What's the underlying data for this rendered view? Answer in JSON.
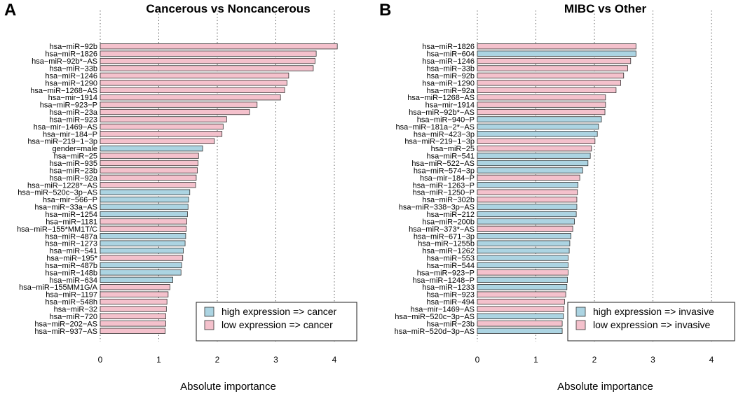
{
  "panels": [
    {
      "letter": "A",
      "title": "Cancerous vs Noncancerous",
      "xlabel": "Absolute importance",
      "xlim": [
        0,
        4.4
      ],
      "xticks": [
        0,
        1,
        2,
        3,
        4
      ],
      "legend": [
        {
          "key": "high",
          "label": "high expression => cancer"
        },
        {
          "key": "low",
          "label": "low expression => cancer"
        }
      ]
    },
    {
      "letter": "B",
      "title": "MIBC vs Other",
      "xlabel": "Absolute importance",
      "xlim": [
        0,
        4.4
      ],
      "xticks": [
        0,
        1,
        2,
        3,
        4
      ],
      "legend": [
        {
          "key": "high",
          "label": "high expression => invasive"
        },
        {
          "key": "low",
          "label": "low expression => invasive"
        }
      ]
    }
  ],
  "colors": {
    "high": "#acd4e2",
    "low": "#f4c1cc",
    "bar_edge": "#333333",
    "grid": "#666666"
  },
  "chart_data": [
    {
      "type": "bar",
      "orientation": "horizontal",
      "title": "Cancerous vs Noncancerous",
      "xlabel": "Absolute importance",
      "xlim": [
        0,
        4.4
      ],
      "grid": "vertical dotted",
      "legend_position": "bottom-right",
      "categories": [
        "hsa−miR−92b",
        "hsa−miR−1826",
        "hsa−miR−92b*−AS",
        "hsa−miR−33b",
        "hsa−miR−1246",
        "hsa−miR−1290",
        "hsa−miR−1268−AS",
        "hsa−mir−1914",
        "hsa−miR−923−P",
        "hsa−miR−23a",
        "hsa−miR−923",
        "hsa−mir−1469−AS",
        "hsa−mir−184−P",
        "hsa−miR−219−1−3p",
        "gender=male",
        "hsa−miR−25",
        "hsa−miR−935",
        "hsa−miR−23b",
        "hsa−miR−92a",
        "hsa−miR−1228*−AS",
        "hsa−miR−520c−3p−AS",
        "hsa−mir−566−P",
        "hsa−miR−33a−AS",
        "hsa−miR−1254",
        "hsa−miR−1181",
        "hsa−miR−155*MM1T/C",
        "hsa−miR−487a",
        "hsa−miR−1273",
        "hsa−miR−541",
        "hsa−miR−195*",
        "hsa−miR−487b",
        "hsa−miR−148b",
        "hsa−miR−634",
        "hsa−miR−155MM1G/A",
        "hsa−miR−1197",
        "hsa−miR−548h",
        "hsa−miR−32",
        "hsa−miR−720",
        "hsa−miR−202−AS",
        "hsa−miR−937−AS"
      ],
      "values": [
        4.05,
        3.69,
        3.67,
        3.64,
        3.22,
        3.19,
        3.15,
        3.08,
        2.68,
        2.55,
        2.16,
        2.1,
        2.08,
        1.95,
        1.75,
        1.68,
        1.67,
        1.66,
        1.64,
        1.63,
        1.53,
        1.51,
        1.5,
        1.49,
        1.48,
        1.47,
        1.46,
        1.45,
        1.42,
        1.41,
        1.39,
        1.38,
        1.24,
        1.19,
        1.16,
        1.14,
        1.13,
        1.12,
        1.12,
        1.11
      ],
      "direction": [
        "low",
        "low",
        "low",
        "low",
        "low",
        "low",
        "low",
        "low",
        "low",
        "low",
        "low",
        "low",
        "low",
        "low",
        "high",
        "low",
        "low",
        "low",
        "low",
        "low",
        "high",
        "high",
        "high",
        "high",
        "low",
        "low",
        "high",
        "high",
        "high",
        "low",
        "high",
        "high",
        "high",
        "low",
        "low",
        "low",
        "low",
        "low",
        "low",
        "low"
      ]
    },
    {
      "type": "bar",
      "orientation": "horizontal",
      "title": "MIBC vs Other",
      "xlabel": "Absolute importance",
      "xlim": [
        0,
        4.4
      ],
      "grid": "vertical dotted",
      "legend_position": "bottom-right",
      "categories": [
        "hsa−miR−1826",
        "hsa−miR−604",
        "hsa−miR−1246",
        "hsa−miR−33b",
        "hsa−miR−92b",
        "hsa−miR−1290",
        "hsa−miR−92a",
        "hsa−miR−1268−AS",
        "hsa−mir−1914",
        "hsa−miR−92b*−AS",
        "hsa−miR−940−P",
        "hsa−miR−181a−2*−AS",
        "hsa−miR−423−3p",
        "hsa−miR−219−1−3p",
        "hsa−miR−25",
        "hsa−miR−541",
        "hsa−miR−522−AS",
        "hsa−miR−574−3p",
        "hsa−mir−184−P",
        "hsa−miR−1263−P",
        "hsa−miR−1250−P",
        "hsa−miR−302b",
        "hsa−miR−338−3p−AS",
        "hsa−miR−212",
        "hsa−miR−200b",
        "hsa−miR−373*−AS",
        "hsa−miR−671−3p",
        "hsa−miR−1255b",
        "hsa−miR−1262",
        "hsa−miR−553",
        "hsa−miR−544",
        "hsa−miR−923−P",
        "hsa−miR−1248−P",
        "hsa−miR−1233",
        "hsa−miR−923",
        "hsa−miR−494",
        "hsa−mir−1469−AS",
        "hsa−miR−520c−3p−AS",
        "hsa−miR−23b",
        "hsa−miR−520d−3p−AS"
      ],
      "values": [
        2.71,
        2.71,
        2.62,
        2.57,
        2.5,
        2.45,
        2.37,
        2.19,
        2.19,
        2.18,
        2.12,
        2.07,
        2.05,
        2.01,
        1.95,
        1.93,
        1.89,
        1.8,
        1.75,
        1.72,
        1.71,
        1.7,
        1.7,
        1.69,
        1.66,
        1.63,
        1.6,
        1.58,
        1.57,
        1.55,
        1.55,
        1.55,
        1.54,
        1.53,
        1.51,
        1.49,
        1.48,
        1.47,
        1.45,
        1.45
      ],
      "direction": [
        "low",
        "high",
        "low",
        "low",
        "low",
        "low",
        "low",
        "low",
        "low",
        "low",
        "high",
        "high",
        "high",
        "low",
        "low",
        "high",
        "high",
        "high",
        "low",
        "high",
        "low",
        "low",
        "high",
        "high",
        "high",
        "low",
        "high",
        "high",
        "high",
        "high",
        "high",
        "low",
        "high",
        "high",
        "low",
        "low",
        "low",
        "high",
        "low",
        "high"
      ]
    }
  ]
}
